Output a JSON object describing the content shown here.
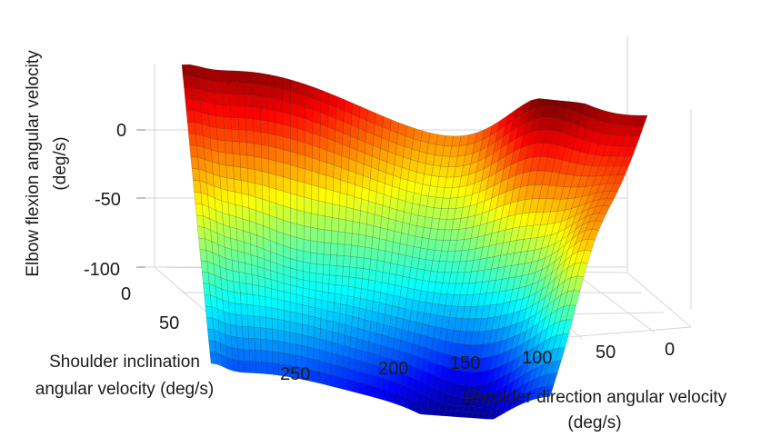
{
  "chart_data": {
    "type": "surface",
    "title": "",
    "zlabel": [
      "Elbow flexion angular velocity",
      "(deg/s)"
    ],
    "ylabel": [
      "Shoulder inclination",
      "angular velocity (deg/s)"
    ],
    "xlabel": [
      "Shoulder direction angular velocity",
      "(deg/s)"
    ],
    "x_ticks": [
      "0",
      "50",
      "100",
      "150",
      "200",
      "250"
    ],
    "y_ticks": [
      "0",
      "50"
    ],
    "z_ticks": [
      "0",
      "-50",
      "-100"
    ],
    "xlim": [
      0,
      270
    ],
    "ylim": [
      0,
      80
    ],
    "zlim": [
      -130,
      10
    ],
    "colormap": "jet",
    "grid": true
  }
}
